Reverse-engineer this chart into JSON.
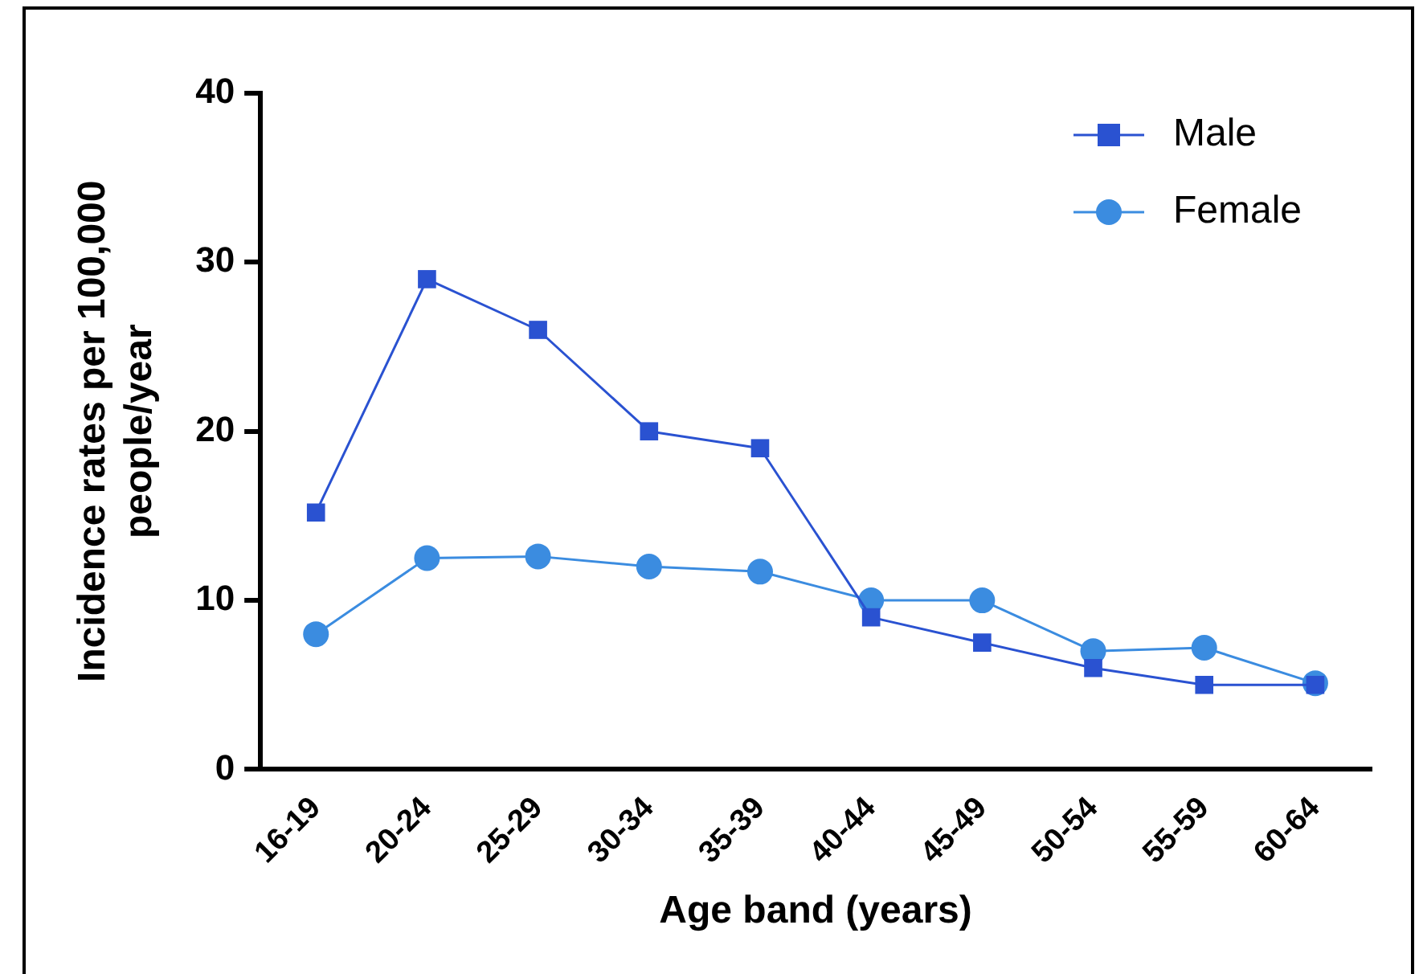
{
  "chart_data": {
    "type": "line",
    "xlabel": "Age band (years)",
    "ylabel": "Incidence rates per 100,000 people/year",
    "categories": [
      "16-19",
      "20-24",
      "25-29",
      "30-34",
      "35-39",
      "40-44",
      "45-49",
      "50-54",
      "55-59",
      "60-64"
    ],
    "series": [
      {
        "name": "Male",
        "color": "#2a52d1",
        "marker": "square",
        "values": [
          15.2,
          29,
          26,
          20,
          19,
          9,
          7.5,
          6,
          5,
          5
        ]
      },
      {
        "name": "Female",
        "color": "#3b8ce0",
        "marker": "circle",
        "values": [
          8,
          12.5,
          12.6,
          12,
          11.7,
          10,
          10,
          7,
          7.2,
          5.1
        ]
      }
    ],
    "ylim": [
      0,
      40
    ],
    "yticks": [
      0,
      10,
      20,
      30,
      40
    ],
    "grid": false,
    "legend": "top right",
    "line_style": "solid"
  }
}
